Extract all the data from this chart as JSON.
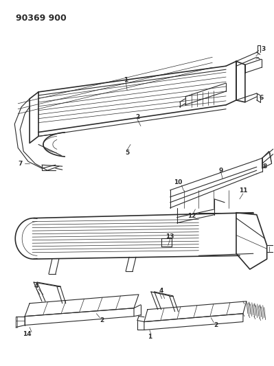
{
  "title": "90369 900",
  "bg_color": "#ffffff",
  "line_color": "#2a2a2a",
  "fig_width": 3.99,
  "fig_height": 5.33,
  "dpi": 100
}
